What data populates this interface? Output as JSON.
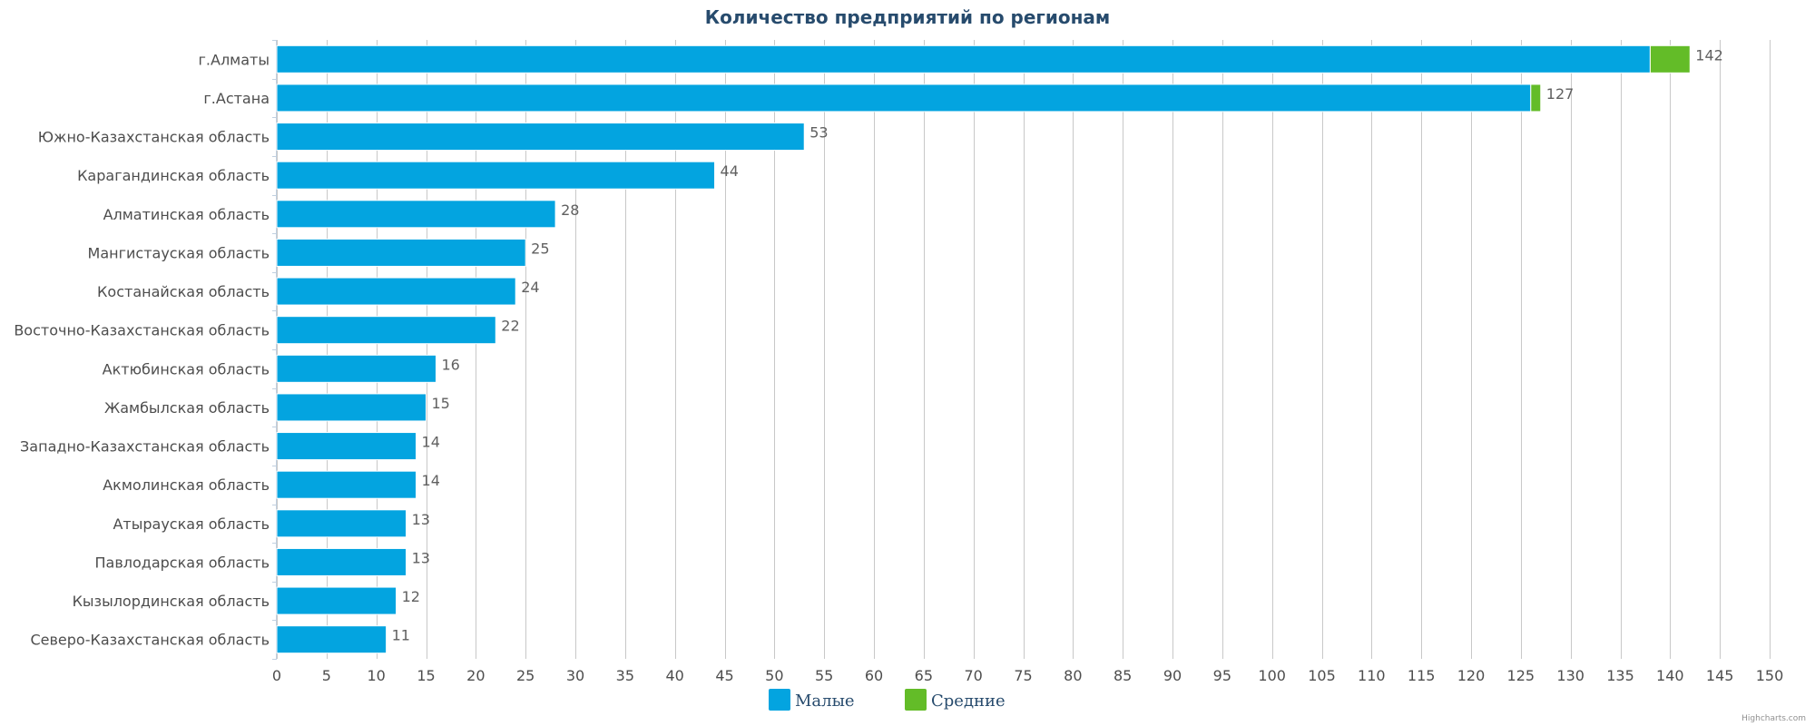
{
  "chart_data": {
    "type": "bar",
    "orientation": "horizontal",
    "stacked": true,
    "title": "Количество предприятий по регионам",
    "categories": [
      "г.Алматы",
      "г.Астана",
      "Южно-Казахстанская область",
      "Карагандинская область",
      "Алматинская область",
      "Мангистауская область",
      "Костанайская область",
      "Восточно-Казахстанская область",
      "Актюбинская область",
      "Жамбылская область",
      "Западно-Казахстанская область",
      "Акмолинская область",
      "Атырауская область",
      "Павлодарская область",
      "Кызылординская область",
      "Северо-Казахстанская область"
    ],
    "series": [
      {
        "name": "Малые",
        "color": "#03a4e0",
        "values": [
          138,
          126,
          53,
          44,
          28,
          25,
          24,
          22,
          16,
          15,
          14,
          14,
          13,
          13,
          12,
          11
        ]
      },
      {
        "name": "Средние",
        "color": "#63bc28",
        "values": [
          4,
          1,
          0,
          0,
          0,
          0,
          0,
          0,
          0,
          0,
          0,
          0,
          0,
          0,
          0,
          0
        ]
      }
    ],
    "totals": [
      142,
      127,
      53,
      44,
      28,
      25,
      24,
      22,
      16,
      15,
      14,
      14,
      13,
      13,
      12,
      11
    ],
    "xlim": [
      0,
      150
    ],
    "xticks": [
      0,
      5,
      10,
      15,
      20,
      25,
      30,
      35,
      40,
      45,
      50,
      55,
      60,
      65,
      70,
      75,
      80,
      85,
      90,
      95,
      100,
      105,
      110,
      115,
      120,
      125,
      130,
      135,
      140,
      145,
      150
    ],
    "grid": true,
    "legend_position": "bottom-center",
    "credit": "Highcharts.com"
  }
}
